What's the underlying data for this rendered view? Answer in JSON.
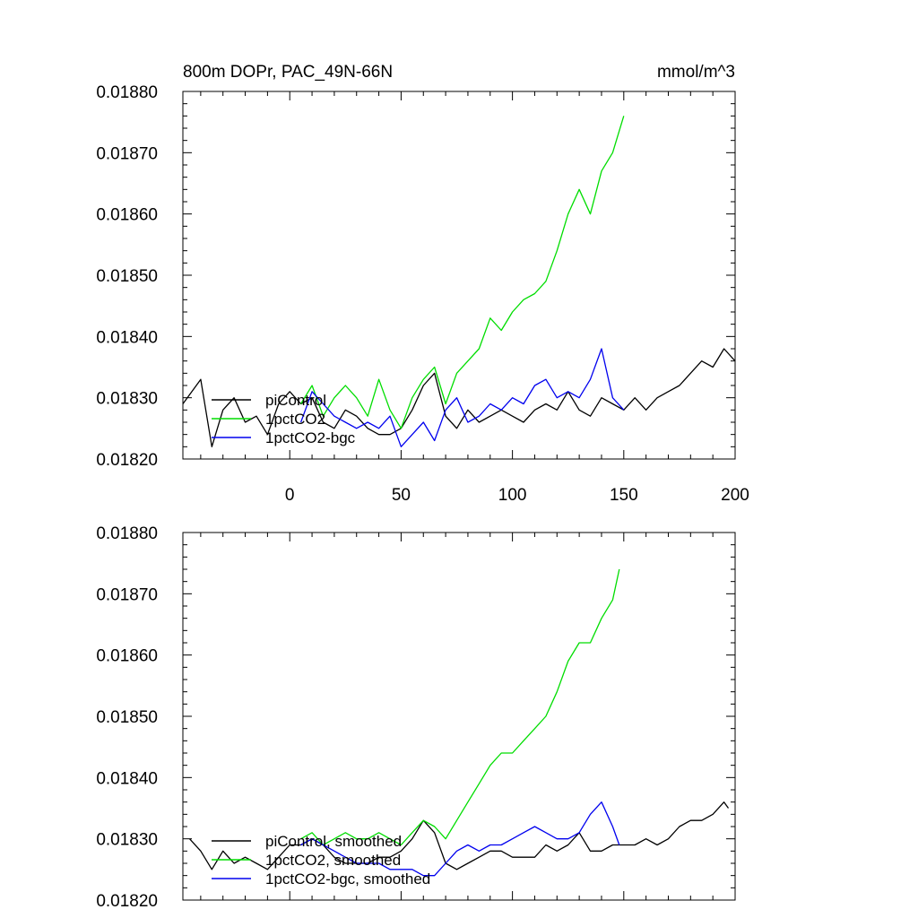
{
  "chart_data": [
    {
      "type": "line",
      "title": "800m DOPr, PAC_49N-66N",
      "units": "mmol/m^3",
      "xlim": [
        -48,
        200
      ],
      "ylim": [
        0.0182,
        0.0188
      ],
      "xticks": [
        0,
        50,
        100,
        150,
        200
      ],
      "xtick_labels": [
        "0",
        "50",
        "100",
        "150",
        "200"
      ],
      "yticks": [
        0.0182,
        0.0183,
        0.0184,
        0.0185,
        0.0186,
        0.0187,
        0.0188
      ],
      "ytick_labels": [
        "0.01820",
        "0.01830",
        "0.01840",
        "0.01850",
        "0.01860",
        "0.01870",
        "0.01880"
      ],
      "legend_position": "bottom-left",
      "series": [
        {
          "name": "piControl",
          "color": "#000000",
          "x": [
            -48,
            -40,
            -35,
            -30,
            -25,
            -20,
            -15,
            -10,
            -5,
            0,
            5,
            10,
            15,
            20,
            25,
            30,
            35,
            40,
            45,
            50,
            55,
            60,
            65,
            70,
            75,
            80,
            85,
            90,
            95,
            100,
            105,
            110,
            115,
            120,
            125,
            130,
            135,
            140,
            145,
            150,
            155,
            160,
            165,
            170,
            175,
            180,
            185,
            190,
            195,
            200
          ],
          "y": [
            0.01829,
            0.01833,
            0.01822,
            0.01828,
            0.0183,
            0.01826,
            0.01827,
            0.01824,
            0.01829,
            0.01831,
            0.01829,
            0.0183,
            0.01826,
            0.01825,
            0.01828,
            0.01827,
            0.01825,
            0.01824,
            0.01824,
            0.01825,
            0.01828,
            0.01832,
            0.01834,
            0.01827,
            0.01825,
            0.01828,
            0.01826,
            0.01827,
            0.01828,
            0.01827,
            0.01826,
            0.01828,
            0.01829,
            0.01828,
            0.01831,
            0.01828,
            0.01827,
            0.0183,
            0.01829,
            0.01828,
            0.0183,
            0.01828,
            0.0183,
            0.01831,
            0.01832,
            0.01834,
            0.01836,
            0.01835,
            0.01838,
            0.01836
          ]
        },
        {
          "name": "1pctCO2",
          "color": "#00dd00",
          "x": [
            5,
            10,
            15,
            20,
            25,
            30,
            35,
            40,
            45,
            50,
            55,
            60,
            65,
            70,
            75,
            80,
            85,
            90,
            95,
            100,
            105,
            110,
            115,
            120,
            125,
            130,
            135,
            140,
            145,
            150
          ],
          "y": [
            0.01829,
            0.01832,
            0.01827,
            0.0183,
            0.01832,
            0.0183,
            0.01827,
            0.01833,
            0.01828,
            0.01825,
            0.0183,
            0.01833,
            0.01835,
            0.01829,
            0.01834,
            0.01836,
            0.01838,
            0.01843,
            0.01841,
            0.01844,
            0.01846,
            0.01847,
            0.01849,
            0.01854,
            0.0186,
            0.01864,
            0.0186,
            0.01867,
            0.0187,
            0.01876
          ]
        },
        {
          "name": "1pctCO2-bgc",
          "color": "#0000ee",
          "x": [
            5,
            10,
            15,
            20,
            25,
            30,
            35,
            40,
            45,
            50,
            55,
            60,
            65,
            70,
            75,
            80,
            85,
            90,
            95,
            100,
            105,
            110,
            115,
            120,
            125,
            130,
            135,
            140,
            145,
            150
          ],
          "y": [
            0.01826,
            0.01831,
            0.01829,
            0.01827,
            0.01826,
            0.01825,
            0.01826,
            0.01825,
            0.01827,
            0.01822,
            0.01824,
            0.01826,
            0.01823,
            0.01828,
            0.0183,
            0.01826,
            0.01827,
            0.01829,
            0.01828,
            0.0183,
            0.01829,
            0.01832,
            0.01833,
            0.0183,
            0.01831,
            0.0183,
            0.01833,
            0.01838,
            0.0183,
            0.01828
          ]
        }
      ]
    },
    {
      "type": "line",
      "title": "",
      "units": "",
      "xlim": [
        -48,
        200
      ],
      "ylim": [
        0.0182,
        0.0188
      ],
      "xticks": [
        0,
        50,
        100,
        150,
        200
      ],
      "xtick_labels": [],
      "yticks": [
        0.0182,
        0.0183,
        0.0184,
        0.0185,
        0.0186,
        0.0187,
        0.0188
      ],
      "ytick_labels": [
        "0.01820",
        "0.01830",
        "0.01840",
        "0.01850",
        "0.01860",
        "0.01870",
        "0.01880"
      ],
      "legend_position": "bottom-left",
      "series": [
        {
          "name": "piControl, smoothed",
          "color": "#000000",
          "x": [
            -45,
            -40,
            -35,
            -30,
            -25,
            -20,
            -15,
            -10,
            -5,
            0,
            5,
            10,
            15,
            20,
            25,
            30,
            35,
            40,
            45,
            50,
            55,
            60,
            65,
            70,
            75,
            80,
            85,
            90,
            95,
            100,
            105,
            110,
            115,
            120,
            125,
            130,
            135,
            140,
            145,
            150,
            155,
            160,
            165,
            170,
            175,
            180,
            185,
            190,
            195,
            197
          ],
          "y": [
            0.0183,
            0.01828,
            0.01825,
            0.01828,
            0.01826,
            0.01827,
            0.01826,
            0.01825,
            0.01827,
            0.01829,
            0.01829,
            0.0183,
            0.01829,
            0.01827,
            0.01826,
            0.01826,
            0.01826,
            0.01827,
            0.01827,
            0.01828,
            0.0183,
            0.01833,
            0.01831,
            0.01826,
            0.01825,
            0.01826,
            0.01827,
            0.01828,
            0.01828,
            0.01827,
            0.01827,
            0.01827,
            0.01829,
            0.01828,
            0.01829,
            0.01831,
            0.01828,
            0.01828,
            0.01829,
            0.01829,
            0.01829,
            0.0183,
            0.01829,
            0.0183,
            0.01832,
            0.01833,
            0.01833,
            0.01834,
            0.01836,
            0.01835
          ]
        },
        {
          "name": "1pctCO2, smoothed",
          "color": "#00dd00",
          "x": [
            5,
            10,
            15,
            20,
            25,
            30,
            35,
            40,
            45,
            50,
            55,
            60,
            65,
            70,
            75,
            80,
            85,
            90,
            95,
            100,
            105,
            110,
            115,
            120,
            125,
            130,
            135,
            140,
            145,
            148
          ],
          "y": [
            0.0183,
            0.01831,
            0.01829,
            0.0183,
            0.01831,
            0.0183,
            0.0183,
            0.01831,
            0.0183,
            0.01829,
            0.01831,
            0.01833,
            0.01832,
            0.0183,
            0.01833,
            0.01836,
            0.01839,
            0.01842,
            0.01844,
            0.01844,
            0.01846,
            0.01848,
            0.0185,
            0.01854,
            0.01859,
            0.01862,
            0.01862,
            0.01866,
            0.01869,
            0.01874
          ]
        },
        {
          "name": "1pctCO2-bgc, smoothed",
          "color": "#0000ee",
          "x": [
            5,
            10,
            15,
            20,
            25,
            30,
            35,
            40,
            45,
            50,
            55,
            60,
            65,
            70,
            75,
            80,
            85,
            90,
            95,
            100,
            105,
            110,
            115,
            120,
            125,
            130,
            135,
            140,
            145,
            148
          ],
          "y": [
            0.01829,
            0.0183,
            0.01829,
            0.01828,
            0.01827,
            0.01826,
            0.01826,
            0.01826,
            0.01825,
            0.01825,
            0.01825,
            0.01824,
            0.01824,
            0.01826,
            0.01828,
            0.01829,
            0.01828,
            0.01829,
            0.01829,
            0.0183,
            0.01831,
            0.01832,
            0.01831,
            0.0183,
            0.0183,
            0.01831,
            0.01834,
            0.01836,
            0.01832,
            0.01829
          ]
        }
      ]
    }
  ]
}
